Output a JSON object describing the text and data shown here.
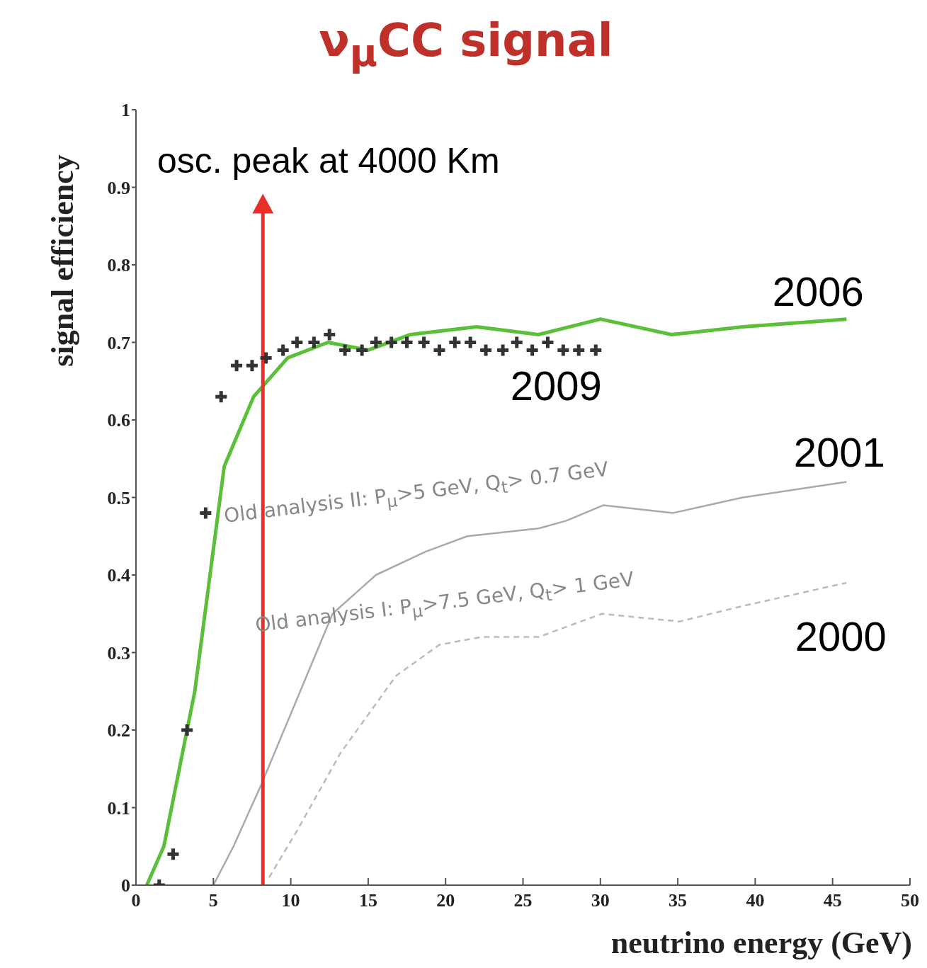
{
  "chart_data": {
    "type": "line",
    "title": "ν$_{μ}$CC   signal",
    "xlabel": "neutrino energy (GeV)",
    "ylabel": "signal efficiency",
    "xlim": [
      0,
      50
    ],
    "xticks": [
      0,
      5,
      10,
      15,
      20,
      25,
      30,
      35,
      40,
      45,
      50
    ],
    "ylim": [
      0,
      1
    ],
    "yticks": [
      0,
      0.1,
      0.2,
      0.3,
      0.4,
      0.5,
      0.6,
      0.7,
      0.8,
      0.9,
      1
    ],
    "grid": false,
    "legend": false,
    "series": [
      {
        "name": "2009",
        "type": "scatter",
        "marker": "cross",
        "color": "#333333",
        "x": [
          1.5,
          2.4,
          3.3,
          4.5,
          5.5,
          6.5,
          7.5,
          8.4,
          9.5,
          10.4,
          11.5,
          12.5,
          13.5,
          14.6,
          15.5,
          16.5,
          17.5,
          18.6,
          19.6,
          20.6,
          21.6,
          22.6,
          23.7,
          24.6,
          25.6,
          26.6,
          27.6,
          28.6,
          29.7
        ],
        "values": [
          0.0,
          0.04,
          0.2,
          0.48,
          0.63,
          0.67,
          0.67,
          0.68,
          0.69,
          0.7,
          0.7,
          0.71,
          0.69,
          0.69,
          0.7,
          0.7,
          0.7,
          0.7,
          0.69,
          0.7,
          0.7,
          0.69,
          0.69,
          0.7,
          0.69,
          0.7,
          0.69,
          0.69,
          0.69
        ]
      },
      {
        "name": "2006",
        "type": "line",
        "line_style": "solid",
        "color": "#5cbf3a",
        "x": [
          0.7,
          1.8,
          3.8,
          5.7,
          7.6,
          9.8,
          12.4,
          15,
          17.7,
          22,
          26,
          30,
          34.6,
          39.2,
          45.9
        ],
        "values": [
          0.0,
          0.05,
          0.25,
          0.54,
          0.63,
          0.68,
          0.7,
          0.69,
          0.71,
          0.72,
          0.71,
          0.73,
          0.71,
          0.72,
          0.73
        ]
      },
      {
        "name": "2001",
        "type": "line",
        "line_style": "solid",
        "color": "#aaaaaa",
        "x": [
          5,
          6.3,
          8.1,
          10.4,
          12.7,
          15.5,
          18.7,
          21.4,
          26,
          27.8,
          30.2,
          34.7,
          39.2,
          45.9
        ],
        "values": [
          0,
          0.05,
          0.13,
          0.24,
          0.35,
          0.4,
          0.43,
          0.45,
          0.46,
          0.47,
          0.49,
          0.48,
          0.5,
          0.52
        ]
      },
      {
        "name": "2000",
        "type": "line",
        "line_style": "dashed",
        "color": "#bbbbbb",
        "x": [
          8.6,
          10.4,
          13.2,
          16.8,
          19.6,
          22.3,
          26,
          30.1,
          35.1,
          39.2,
          45.9
        ],
        "values": [
          0.01,
          0.07,
          0.17,
          0.27,
          0.31,
          0.32,
          0.32,
          0.35,
          0.34,
          0.36,
          0.39
        ]
      }
    ],
    "ref_lines": [
      {
        "axis": "x",
        "value": 8.2,
        "label": "osc. peak at 4000 Km",
        "color": "#e8302a"
      }
    ],
    "annotations": [
      "Old analysis II: P$_{μ}$>5 GeV,  Q$_{t}$> 0.7 GeV",
      "Old analysis I: P$_{μ}$>7.5 GeV,  Q$_{t}$> 1 GeV"
    ]
  }
}
